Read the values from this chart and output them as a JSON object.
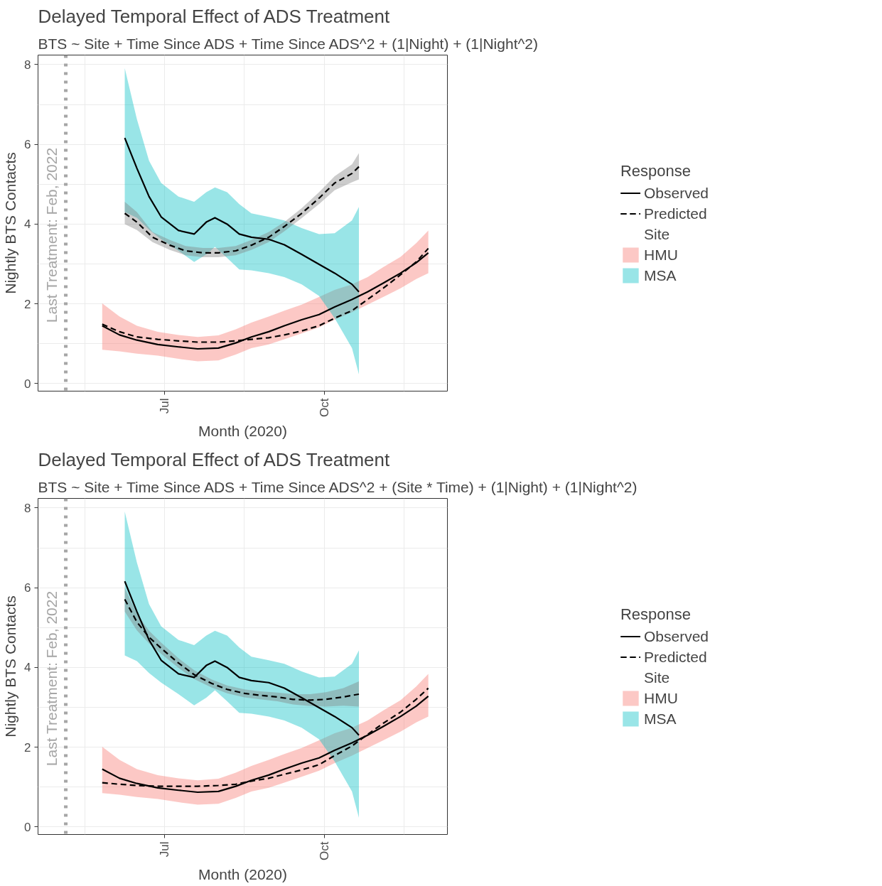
{
  "chart_data": [
    {
      "type": "line",
      "title": "Delayed Temporal Effect of ADS Treatment",
      "subtitle": "BTS ~ Site + Time Since ADS + Time Since ADS^2 + (1|Night) + (1|Night^2)",
      "xlabel": "Month (2020)",
      "ylabel": "Nightly BTS Contacts",
      "legend_title": [
        "Response",
        "Site"
      ],
      "legend": "right",
      "grid": true,
      "xlim": [
        "2020-04-19",
        "2020-12-11"
      ],
      "xticks": [
        {
          "value": "2020-05-16",
          "label": null
        },
        {
          "value": "2020-07-01",
          "label": "Jul"
        },
        {
          "value": "2020-08-16",
          "label": null
        },
        {
          "value": "2020-10-01",
          "label": "Oct"
        },
        {
          "value": "2020-11-16",
          "label": null
        }
      ],
      "ylim": [
        -0.19,
        8.24
      ],
      "yticks": [
        0,
        {
          "value": 1,
          "label": null
        },
        2,
        {
          "value": 3,
          "label": null
        },
        4,
        {
          "value": 5,
          "label": null
        },
        6,
        {
          "value": 7,
          "label": null
        },
        8
      ],
      "ref_lines": [
        {
          "axis": "x",
          "value": "2020-05-05",
          "label": "Last Treatment: Feb, 2022",
          "color": "#a6a6a6",
          "line_style": "dotted"
        }
      ],
      "series": [
        {
          "type": "line",
          "name": "HMU",
          "color": "#f8766d",
          "x": [
            "2020-05-26",
            "2020-06-05",
            "2020-06-15",
            "2020-06-27",
            "2020-07-09",
            "2020-07-20",
            "2020-08-01",
            "2020-08-11",
            "2020-08-20",
            "2020-08-30",
            "2020-09-08",
            "2020-09-18",
            "2020-09-28",
            "2020-10-07",
            "2020-10-17",
            "2020-10-26",
            "2020-11-04",
            "2020-11-14",
            "2020-11-23",
            "2020-11-30"
          ],
          "values": [
            null,
            null,
            null,
            null,
            null,
            null,
            null,
            null,
            null,
            null,
            null,
            null,
            null,
            null,
            null,
            null,
            null,
            null,
            null,
            null
          ],
          "lower": [
            0.85,
            0.81,
            0.75,
            0.7,
            0.62,
            0.56,
            0.58,
            0.73,
            0.89,
            0.98,
            1.11,
            1.26,
            1.41,
            1.6,
            1.79,
            1.98,
            2.17,
            2.39,
            2.62,
            2.77
          ],
          "upper": [
            2.01,
            1.68,
            1.45,
            1.3,
            1.22,
            1.17,
            1.21,
            1.36,
            1.53,
            1.68,
            1.83,
            1.98,
            2.17,
            2.35,
            2.49,
            2.67,
            2.92,
            3.18,
            3.52,
            3.84
          ]
        },
        {
          "type": "line",
          "name": "MSA",
          "color": "#00bfc4",
          "x": [
            "2020-06-08",
            "2020-06-15",
            "2020-06-22",
            "2020-06-29",
            "2020-07-09",
            "2020-07-18",
            "2020-07-25",
            "2020-07-30",
            "2020-08-06",
            "2020-08-13",
            "2020-08-20",
            "2020-08-30",
            "2020-09-08",
            "2020-09-18",
            "2020-09-28",
            "2020-10-07",
            "2020-10-17",
            "2020-10-21"
          ],
          "values": [
            null,
            null,
            null,
            null,
            null,
            null,
            null,
            null,
            null,
            null,
            null,
            null,
            null,
            null,
            null,
            null,
            null,
            null
          ],
          "lower": [
            4.3,
            4.16,
            3.86,
            3.62,
            3.33,
            3.05,
            3.24,
            3.43,
            3.15,
            2.86,
            2.84,
            2.77,
            2.67,
            2.49,
            2.2,
            1.64,
            0.89,
            0.23
          ],
          "upper": [
            7.91,
            6.63,
            5.59,
            5.03,
            4.69,
            4.56,
            4.8,
            4.92,
            4.8,
            4.5,
            4.27,
            4.18,
            4.09,
            3.9,
            3.75,
            3.77,
            4.09,
            4.43
          ]
        },
        {
          "type": "line",
          "color": "#808080",
          "x": [
            "2020-06-08",
            "2020-06-15",
            "2020-06-24",
            "2020-07-04",
            "2020-07-13",
            "2020-07-23",
            "2020-08-01",
            "2020-08-11",
            "2020-08-20",
            "2020-08-30",
            "2020-09-08",
            "2020-09-18",
            "2020-09-28",
            "2020-10-07",
            "2020-10-17",
            "2020-10-21"
          ],
          "values": [
            null,
            null,
            null,
            null,
            null,
            null,
            null,
            null,
            null,
            null,
            null,
            null,
            null,
            null,
            null,
            null
          ],
          "lower": [
            4.0,
            3.85,
            3.55,
            3.35,
            3.22,
            3.17,
            3.17,
            3.22,
            3.35,
            3.55,
            3.82,
            4.15,
            4.5,
            4.85,
            5.05,
            5.12
          ],
          "upper": [
            4.56,
            4.3,
            3.8,
            3.6,
            3.45,
            3.4,
            3.4,
            3.45,
            3.6,
            3.8,
            4.05,
            4.4,
            4.8,
            5.2,
            5.5,
            5.78
          ]
        },
        {
          "type": "line",
          "name": "Observed",
          "color": "#000000",
          "line_style": "solid",
          "x": [
            "2020-05-26",
            "2020-06-05",
            "2020-06-15",
            "2020-06-27",
            "2020-07-09",
            "2020-07-20",
            "2020-08-01",
            "2020-08-11",
            "2020-08-20",
            "2020-08-30",
            "2020-09-08",
            "2020-09-18",
            "2020-09-28",
            "2020-10-07",
            "2020-10-17",
            "2020-10-26",
            "2020-11-04",
            "2020-11-14",
            "2020-11-23",
            "2020-11-30"
          ],
          "values": [
            1.45,
            1.22,
            1.09,
            0.98,
            0.92,
            0.87,
            0.89,
            1.02,
            1.17,
            1.3,
            1.45,
            1.6,
            1.73,
            1.92,
            2.11,
            2.3,
            2.52,
            2.77,
            3.03,
            3.28
          ]
        },
        {
          "type": "line",
          "name": "Observed",
          "color": "#000000",
          "line_style": "solid",
          "x": [
            "2020-06-08",
            "2020-06-15",
            "2020-06-22",
            "2020-06-29",
            "2020-07-09",
            "2020-07-18",
            "2020-07-25",
            "2020-07-30",
            "2020-08-06",
            "2020-08-13",
            "2020-08-20",
            "2020-08-30",
            "2020-09-08",
            "2020-09-18",
            "2020-09-28",
            "2020-10-07",
            "2020-10-17",
            "2020-10-21"
          ],
          "values": [
            6.16,
            5.4,
            4.69,
            4.18,
            3.84,
            3.75,
            4.05,
            4.16,
            4.0,
            3.75,
            3.67,
            3.62,
            3.48,
            3.24,
            2.99,
            2.77,
            2.49,
            2.3
          ]
        },
        {
          "type": "line",
          "name": "Predicted",
          "color": "#000000",
          "line_style": "dashed",
          "x": [
            "2020-05-26",
            "2020-06-05",
            "2020-06-15",
            "2020-06-27",
            "2020-07-09",
            "2020-07-20",
            "2020-08-01",
            "2020-08-11",
            "2020-08-20",
            "2020-08-30",
            "2020-09-08",
            "2020-09-18",
            "2020-09-28",
            "2020-10-07",
            "2020-10-17",
            "2020-10-26",
            "2020-11-04",
            "2020-11-14",
            "2020-11-23",
            "2020-11-30"
          ],
          "values": [
            1.49,
            1.3,
            1.17,
            1.11,
            1.07,
            1.04,
            1.04,
            1.07,
            1.11,
            1.15,
            1.22,
            1.32,
            1.45,
            1.64,
            1.83,
            2.11,
            2.39,
            2.73,
            3.05,
            3.39
          ]
        },
        {
          "type": "line",
          "name": "Predicted",
          "color": "#000000",
          "line_style": "dashed",
          "x": [
            "2020-06-08",
            "2020-06-15",
            "2020-06-24",
            "2020-07-04",
            "2020-07-13",
            "2020-07-23",
            "2020-08-01",
            "2020-08-11",
            "2020-08-20",
            "2020-08-30",
            "2020-09-08",
            "2020-09-18",
            "2020-09-28",
            "2020-10-07",
            "2020-10-17",
            "2020-10-21"
          ],
          "values": [
            4.27,
            4.05,
            3.67,
            3.47,
            3.33,
            3.28,
            3.28,
            3.33,
            3.47,
            3.67,
            3.94,
            4.27,
            4.65,
            5.03,
            5.27,
            5.44
          ]
        }
      ]
    },
    {
      "type": "line",
      "title": "Delayed Temporal Effect of ADS Treatment",
      "subtitle": "BTS ~ Site + Time Since ADS + Time Since ADS^2 + (Site * Time) + (1|Night) + (1|Night^2)",
      "xlabel": "Month (2020)",
      "ylabel": "Nightly BTS Contacts",
      "legend_title": [
        "Response",
        "Site"
      ],
      "legend": "right",
      "grid": true,
      "xlim": [
        "2020-04-19",
        "2020-12-11"
      ],
      "xticks": [
        {
          "value": "2020-05-16",
          "label": null
        },
        {
          "value": "2020-07-01",
          "label": "Jul"
        },
        {
          "value": "2020-08-16",
          "label": null
        },
        {
          "value": "2020-10-01",
          "label": "Oct"
        },
        {
          "value": "2020-11-16",
          "label": null
        }
      ],
      "ylim": [
        -0.19,
        8.24
      ],
      "yticks": [
        0,
        {
          "value": 1,
          "label": null
        },
        2,
        {
          "value": 3,
          "label": null
        },
        4,
        {
          "value": 5,
          "label": null
        },
        6,
        {
          "value": 7,
          "label": null
        },
        8
      ],
      "ref_lines": [
        {
          "axis": "x",
          "value": "2020-05-05",
          "label": "Last Treatment: Feb, 2022",
          "color": "#a6a6a6",
          "line_style": "dotted"
        }
      ],
      "series": [
        {
          "type": "line",
          "name": "HMU",
          "color": "#f8766d",
          "x": [
            "2020-05-26",
            "2020-06-05",
            "2020-06-15",
            "2020-06-27",
            "2020-07-09",
            "2020-07-20",
            "2020-08-01",
            "2020-08-11",
            "2020-08-20",
            "2020-08-30",
            "2020-09-08",
            "2020-09-18",
            "2020-09-28",
            "2020-10-07",
            "2020-10-17",
            "2020-10-26",
            "2020-11-04",
            "2020-11-14",
            "2020-11-23",
            "2020-11-30"
          ],
          "values": [
            null,
            null,
            null,
            null,
            null,
            null,
            null,
            null,
            null,
            null,
            null,
            null,
            null,
            null,
            null,
            null,
            null,
            null,
            null,
            null
          ],
          "lower": [
            0.85,
            0.81,
            0.75,
            0.7,
            0.62,
            0.56,
            0.58,
            0.73,
            0.89,
            0.98,
            1.11,
            1.26,
            1.41,
            1.6,
            1.79,
            1.98,
            2.17,
            2.39,
            2.62,
            2.77
          ],
          "upper": [
            2.01,
            1.68,
            1.45,
            1.3,
            1.22,
            1.17,
            1.21,
            1.36,
            1.53,
            1.68,
            1.83,
            1.98,
            2.17,
            2.35,
            2.49,
            2.67,
            2.92,
            3.18,
            3.52,
            3.84
          ]
        },
        {
          "type": "line",
          "name": "MSA",
          "color": "#00bfc4",
          "x": [
            "2020-06-08",
            "2020-06-15",
            "2020-06-22",
            "2020-06-29",
            "2020-07-09",
            "2020-07-18",
            "2020-07-25",
            "2020-07-30",
            "2020-08-06",
            "2020-08-13",
            "2020-08-20",
            "2020-08-30",
            "2020-09-08",
            "2020-09-18",
            "2020-09-28",
            "2020-10-07",
            "2020-10-17",
            "2020-10-21"
          ],
          "values": [
            null,
            null,
            null,
            null,
            null,
            null,
            null,
            null,
            null,
            null,
            null,
            null,
            null,
            null,
            null,
            null,
            null,
            null
          ],
          "lower": [
            4.3,
            4.16,
            3.86,
            3.62,
            3.33,
            3.05,
            3.24,
            3.43,
            3.15,
            2.86,
            2.84,
            2.77,
            2.67,
            2.49,
            2.2,
            1.64,
            0.89,
            0.23
          ],
          "upper": [
            7.91,
            6.63,
            5.59,
            5.03,
            4.69,
            4.56,
            4.8,
            4.92,
            4.8,
            4.5,
            4.27,
            4.18,
            4.09,
            3.9,
            3.75,
            3.77,
            4.09,
            4.43
          ]
        },
        {
          "type": "line",
          "color": "#808080",
          "x": [
            "2020-06-08",
            "2020-06-15",
            "2020-06-22",
            "2020-06-29",
            "2020-07-09",
            "2020-07-18",
            "2020-07-28",
            "2020-08-06",
            "2020-08-16",
            "2020-08-25",
            "2020-09-04",
            "2020-09-13",
            "2020-09-23",
            "2020-10-02",
            "2020-10-12",
            "2020-10-21"
          ],
          "values": [
            null,
            null,
            null,
            null,
            null,
            null,
            null,
            null,
            null,
            null,
            null,
            null,
            null,
            null,
            null,
            null
          ],
          "lower": [
            5.4,
            4.93,
            4.6,
            4.34,
            3.99,
            3.71,
            3.5,
            3.35,
            3.25,
            3.2,
            3.15,
            3.07,
            3.03,
            3.02,
            3.04,
            3.02
          ],
          "upper": [
            6.0,
            5.35,
            4.92,
            4.62,
            4.23,
            3.93,
            3.7,
            3.55,
            3.45,
            3.4,
            3.37,
            3.33,
            3.33,
            3.38,
            3.48,
            3.65
          ]
        },
        {
          "type": "line",
          "name": "Observed",
          "color": "#000000",
          "line_style": "solid",
          "x": [
            "2020-05-26",
            "2020-06-05",
            "2020-06-15",
            "2020-06-27",
            "2020-07-09",
            "2020-07-20",
            "2020-08-01",
            "2020-08-11",
            "2020-08-20",
            "2020-08-30",
            "2020-09-08",
            "2020-09-18",
            "2020-09-28",
            "2020-10-07",
            "2020-10-17",
            "2020-10-26",
            "2020-11-04",
            "2020-11-14",
            "2020-11-23",
            "2020-11-30"
          ],
          "values": [
            1.45,
            1.22,
            1.09,
            0.98,
            0.92,
            0.87,
            0.89,
            1.02,
            1.17,
            1.3,
            1.45,
            1.6,
            1.73,
            1.92,
            2.11,
            2.3,
            2.52,
            2.77,
            3.03,
            3.28
          ]
        },
        {
          "type": "line",
          "name": "Observed",
          "color": "#000000",
          "line_style": "solid",
          "x": [
            "2020-06-08",
            "2020-06-15",
            "2020-06-22",
            "2020-06-29",
            "2020-07-09",
            "2020-07-18",
            "2020-07-25",
            "2020-07-30",
            "2020-08-06",
            "2020-08-13",
            "2020-08-20",
            "2020-08-30",
            "2020-09-08",
            "2020-09-18",
            "2020-09-28",
            "2020-10-07",
            "2020-10-17",
            "2020-10-21"
          ],
          "values": [
            6.16,
            5.4,
            4.69,
            4.18,
            3.84,
            3.75,
            4.05,
            4.16,
            4.0,
            3.75,
            3.67,
            3.62,
            3.48,
            3.24,
            2.99,
            2.77,
            2.49,
            2.3
          ]
        },
        {
          "type": "line",
          "name": "Predicted",
          "color": "#000000",
          "line_style": "dashed",
          "x": [
            "2020-05-26",
            "2020-06-05",
            "2020-06-15",
            "2020-06-27",
            "2020-07-09",
            "2020-07-20",
            "2020-08-01",
            "2020-08-11",
            "2020-08-20",
            "2020-08-30",
            "2020-09-08",
            "2020-09-18",
            "2020-09-28",
            "2020-10-07",
            "2020-10-17",
            "2020-10-26",
            "2020-11-04",
            "2020-11-14",
            "2020-11-23",
            "2020-11-30"
          ],
          "values": [
            1.11,
            1.07,
            1.04,
            1.02,
            1.02,
            1.02,
            1.04,
            1.07,
            1.15,
            1.22,
            1.32,
            1.43,
            1.56,
            1.79,
            2.03,
            2.32,
            2.6,
            2.88,
            3.2,
            3.48
          ]
        },
        {
          "type": "line",
          "name": "Predicted",
          "color": "#000000",
          "line_style": "dashed",
          "x": [
            "2020-06-08",
            "2020-06-15",
            "2020-06-22",
            "2020-06-29",
            "2020-07-09",
            "2020-07-18",
            "2020-07-28",
            "2020-08-06",
            "2020-08-16",
            "2020-08-25",
            "2020-09-04",
            "2020-09-13",
            "2020-09-23",
            "2020-10-02",
            "2020-10-12",
            "2020-10-21"
          ],
          "values": [
            5.71,
            5.14,
            4.76,
            4.48,
            4.11,
            3.82,
            3.6,
            3.45,
            3.35,
            3.3,
            3.26,
            3.2,
            3.18,
            3.2,
            3.26,
            3.33
          ]
        }
      ]
    }
  ]
}
